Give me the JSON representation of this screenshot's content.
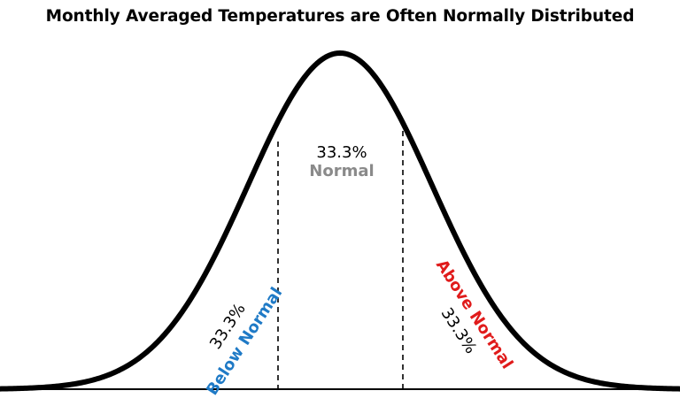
{
  "title": "Monthly Averaged Temperatures are Often Normally Distributed",
  "regions": {
    "below": {
      "percent": "33.3%",
      "label": "Below Normal",
      "color": "#1f7ac6"
    },
    "normal": {
      "percent": "33.3%",
      "label": "Normal",
      "color": "#8a8a8a"
    },
    "above": {
      "percent": "33.3%",
      "label": "Above Normal",
      "color": "#e01b1b"
    }
  },
  "colors": {
    "curve": "#000000",
    "baseline": "#000000",
    "dividers": "#000000"
  }
}
